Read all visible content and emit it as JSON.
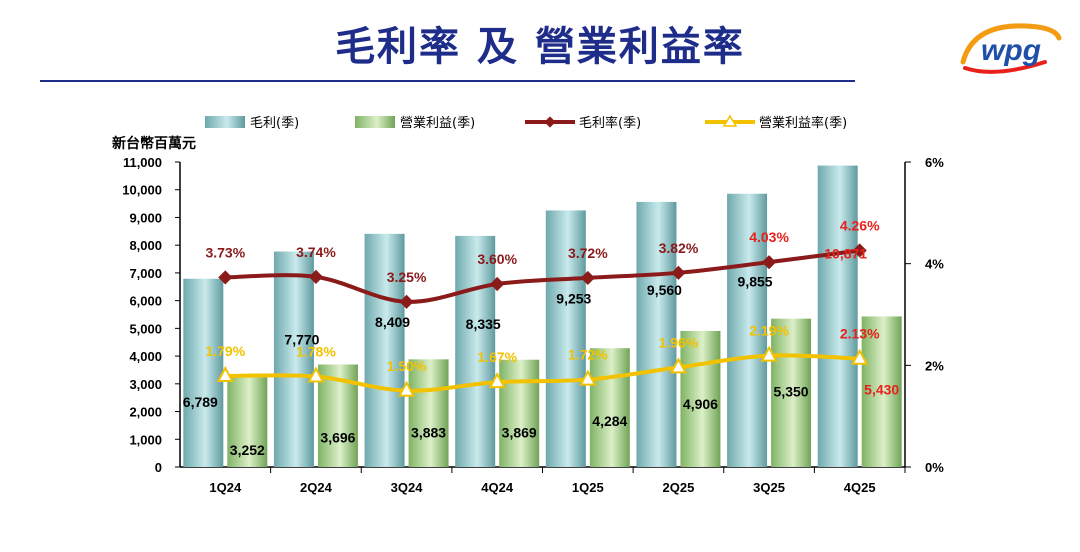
{
  "page": {
    "title": "毛利率 及 營業利益率"
  },
  "logo": {
    "text": "wpg"
  },
  "colors": {
    "title": "#1f2d8a",
    "gross_bar": "#a9d3d6",
    "op_bar": "#b9dca0",
    "gross_margin_line": "#8b1a1a",
    "op_margin_line": "#f2c200",
    "highlight_label": "#e8201c"
  },
  "chart_data": {
    "type": "bar",
    "categories": [
      "1Q24",
      "2Q24",
      "3Q24",
      "4Q24",
      "1Q25",
      "2Q25",
      "3Q25",
      "4Q25"
    ],
    "y_unit_label": "新台幣百萬元",
    "ylim": [
      0,
      11000
    ],
    "y_ticks": [
      "0",
      "1,000",
      "2,000",
      "3,000",
      "4,000",
      "5,000",
      "6,000",
      "7,000",
      "8,000",
      "9,000",
      "10,000",
      "11,000"
    ],
    "y2lim": [
      0,
      6
    ],
    "y2_ticks": [
      "0%",
      "2%",
      "4%",
      "6%"
    ],
    "legend_position": "top",
    "series": [
      {
        "name": "毛利(季)",
        "kind": "bar",
        "values": [
          6789,
          7770,
          8409,
          8335,
          9253,
          9560,
          9855,
          10871
        ],
        "labels": [
          "6,789",
          "7,770",
          "8,409",
          "8,335",
          "9,253",
          "9,560",
          "9,855",
          "10,871"
        ]
      },
      {
        "name": "營業利益(季)",
        "kind": "bar",
        "values": [
          3252,
          3696,
          3883,
          3869,
          4284,
          4906,
          5350,
          5430
        ],
        "labels": [
          "3,252",
          "3,696",
          "3,883",
          "3,869",
          "4,284",
          "4,906",
          "5,350",
          "5,430"
        ]
      },
      {
        "name": "毛利率(季)",
        "kind": "line",
        "axis": "right",
        "values": [
          3.73,
          3.74,
          3.25,
          3.6,
          3.72,
          3.82,
          4.03,
          4.26
        ],
        "labels": [
          "3.73%",
          "3.74%",
          "3.25%",
          "3.60%",
          "3.72%",
          "3.82%",
          "4.03%",
          "4.26%"
        ]
      },
      {
        "name": "營業利益率(季)",
        "kind": "line",
        "axis": "right",
        "values": [
          1.79,
          1.78,
          1.5,
          1.67,
          1.72,
          1.96,
          2.19,
          2.13
        ],
        "labels": [
          "1.79%",
          "1.78%",
          "1.50%",
          "1.67%",
          "1.72%",
          "1.96%",
          "2.19%",
          "2.13%"
        ]
      }
    ]
  }
}
